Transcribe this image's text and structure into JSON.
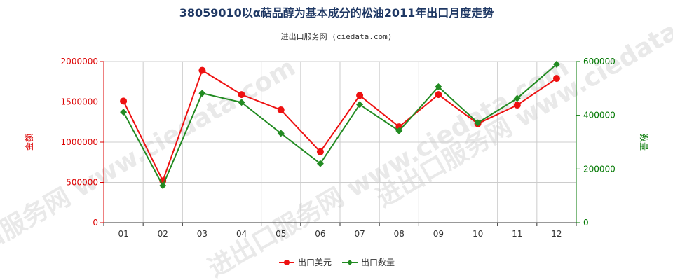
{
  "chart_data": {
    "type": "line",
    "title": "38059010以α萜品醇为基本成分的松油2011年出口月度走势",
    "source": "进出口服务网 (ciedata.com)",
    "watermark": "进出口服务网 www.ciedata.com",
    "categories": [
      "01",
      "02",
      "03",
      "04",
      "05",
      "06",
      "07",
      "08",
      "09",
      "10",
      "11",
      "12"
    ],
    "y_left": {
      "label": "金额",
      "min": 0,
      "max": 2000000,
      "ticks": [
        "0",
        "500000",
        "1000000",
        "1500000",
        "2000000"
      ],
      "color": "#dd0000"
    },
    "y_right": {
      "label": "数量",
      "min": 0,
      "max": 600000,
      "ticks": [
        "0",
        "200000",
        "400000",
        "600000"
      ],
      "color": "#007700"
    },
    "grid": true,
    "legend_position": "bottom",
    "series": [
      {
        "name": "出口美元",
        "axis": "left",
        "color": "#ee1111",
        "values": [
          1510000,
          520000,
          1890000,
          1590000,
          1400000,
          880000,
          1580000,
          1190000,
          1590000,
          1230000,
          1460000,
          1790000
        ]
      },
      {
        "name": "出口数量",
        "axis": "right",
        "color": "#228b22",
        "values": [
          412000,
          138000,
          482000,
          448000,
          333000,
          220000,
          440000,
          342000,
          506000,
          372000,
          463000,
          590000
        ]
      }
    ]
  }
}
